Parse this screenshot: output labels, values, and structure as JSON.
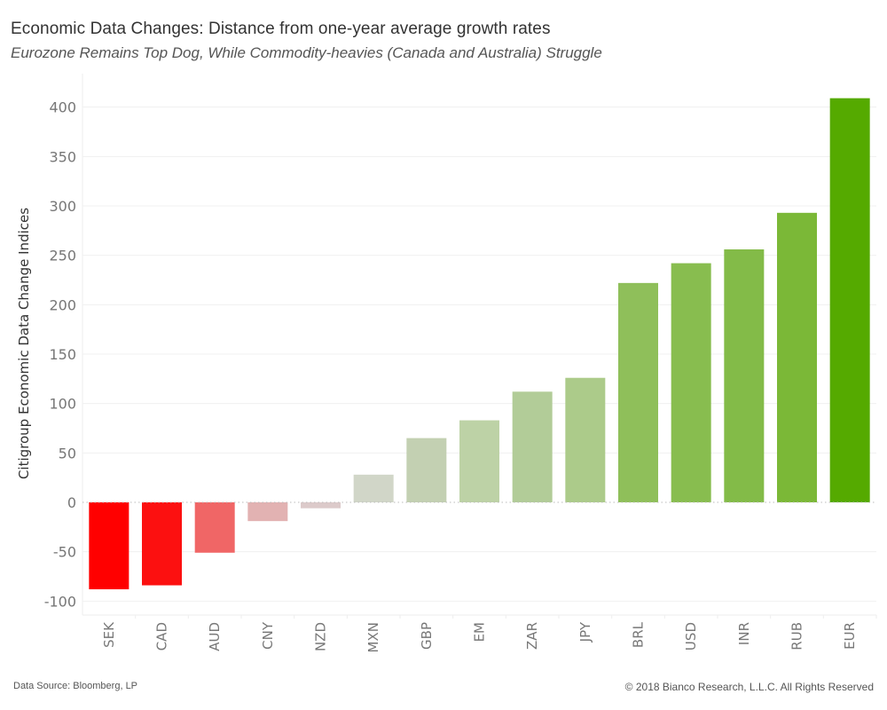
{
  "header": {
    "title": "Economic Data Changes: Distance from one-year average growth rates",
    "subtitle": "Eurozone Remains Top Dog, While Commodity-heavies (Canada and Australia) Struggle"
  },
  "footer": {
    "source": "Data Source: Bloomberg, LP",
    "copyright": "© 2018 Bianco Research, L.L.C. All Rights Reserved"
  },
  "chart_data": {
    "type": "bar",
    "title": "Economic Data Changes: Distance from one-year average growth rates",
    "subtitle": "Eurozone Remains Top Dog, While Commodity-heavies (Canada and Australia) Struggle",
    "xlabel": "",
    "ylabel": "Citigroup Economic Data Change Indices",
    "categories": [
      "SEK",
      "CAD",
      "AUD",
      "CNY",
      "NZD",
      "MXN",
      "GBP",
      "EM",
      "ZAR",
      "JPY",
      "BRL",
      "USD",
      "INR",
      "RUB",
      "EUR"
    ],
    "values": [
      -88,
      -84,
      -51,
      -19,
      -6,
      28,
      65,
      83,
      112,
      126,
      222,
      242,
      256,
      293,
      409
    ],
    "colors": [
      "#ff0000",
      "#fc1010",
      "#f06666",
      "#e2b2b2",
      "#dccaca",
      "#d1d6c8",
      "#c3d0b2",
      "#bdd2a6",
      "#b2cc98",
      "#accb8a",
      "#8fbf5a",
      "#88bd4f",
      "#83bb48",
      "#7bb837",
      "#55aa00"
    ],
    "ylim": [
      -110,
      420
    ],
    "yticks": [
      -100,
      -50,
      0,
      50,
      100,
      150,
      200,
      250,
      300,
      350,
      400
    ],
    "ytick_labels": [
      "-100",
      "-50",
      "0",
      "50",
      "100",
      "150",
      "200",
      "250",
      "300",
      "350",
      "400"
    ],
    "grid": true,
    "legend": "none",
    "zero_line": "dotted"
  }
}
